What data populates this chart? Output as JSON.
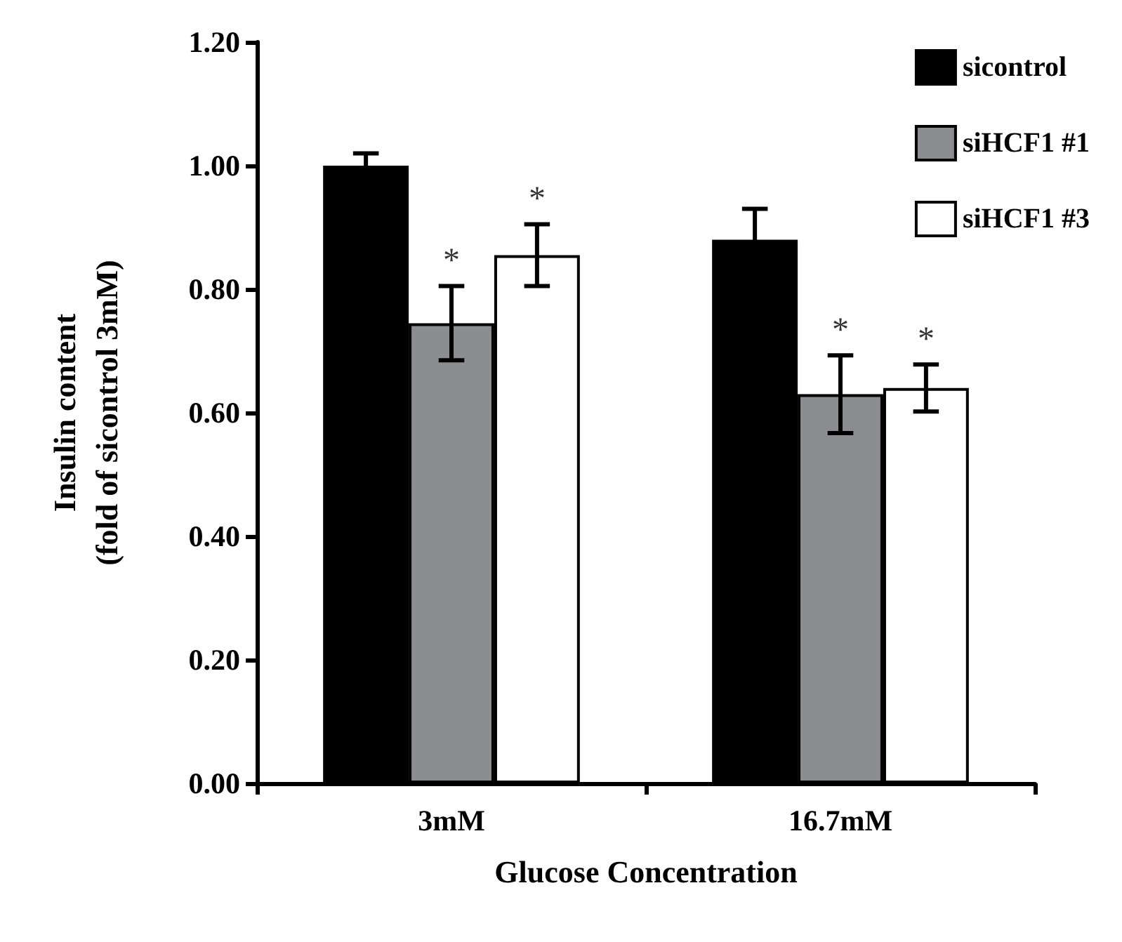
{
  "chart_data": {
    "type": "bar",
    "xlabel": "Glucose Concentration",
    "ylabel": "Insulin content\n(fold of sicontrol 3mM)",
    "categories": [
      "3mM",
      "16.7mM"
    ],
    "series": [
      {
        "name": "sicontrol",
        "color": "#000000",
        "values": [
          1.0,
          0.88
        ],
        "errors": [
          0.02,
          0.05
        ]
      },
      {
        "name": "siHCF1 #1",
        "color": "#8c8d91",
        "values": [
          0.745,
          0.63
        ],
        "errors": [
          0.06,
          0.063
        ]
      },
      {
        "name": "siHCF1 #3",
        "color": "#ffffff",
        "values": [
          0.855,
          0.64
        ],
        "errors": [
          0.05,
          0.038
        ]
      }
    ],
    "ylim": [
      0,
      1.2
    ],
    "yticks": [
      {
        "value": 0,
        "label": "0.00"
      },
      {
        "value": 0.2,
        "label": "0.20"
      },
      {
        "value": 0.4,
        "label": "0.40"
      },
      {
        "value": 0.6,
        "label": "0.60"
      },
      {
        "value": 0.8,
        "label": "0.80"
      },
      {
        "value": 1.0,
        "label": "1.00"
      },
      {
        "value": 1.2,
        "label": "1.20"
      }
    ],
    "legend": "top right",
    "grid": false,
    "annotations": [
      "*",
      "*",
      "*",
      "*"
    ]
  }
}
